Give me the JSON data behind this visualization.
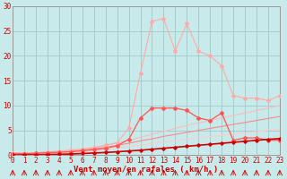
{
  "xlabel": "Vent moyen/en rafales ( km/h )",
  "xlim": [
    0,
    23
  ],
  "ylim": [
    0,
    30
  ],
  "xticks": [
    0,
    1,
    2,
    3,
    4,
    5,
    6,
    7,
    8,
    9,
    10,
    11,
    12,
    13,
    14,
    15,
    16,
    17,
    18,
    19,
    20,
    21,
    22,
    23
  ],
  "yticks": [
    0,
    5,
    10,
    15,
    20,
    25,
    30
  ],
  "bg_color": "#c8eaea",
  "grid_color": "#a0c8c8",
  "series": [
    {
      "x": [
        0,
        1,
        2,
        3,
        4,
        5,
        6,
        7,
        8,
        9,
        10,
        11,
        12,
        13,
        14,
        15,
        16,
        17,
        18,
        19,
        20,
        21,
        22,
        23
      ],
      "y": [
        0.5,
        0.5,
        0.5,
        0.7,
        0.8,
        1.0,
        1.2,
        1.5,
        2.0,
        2.5,
        5.5,
        16.5,
        27.0,
        27.5,
        21.0,
        26.5,
        21.0,
        20.0,
        18.0,
        12.0,
        11.5,
        11.5,
        11.0,
        12.0
      ],
      "color": "#ffaaaa",
      "lw": 0.8,
      "marker": "D",
      "ms": 2.0
    },
    {
      "x": [
        0,
        1,
        2,
        3,
        4,
        5,
        6,
        7,
        8,
        9,
        10,
        11,
        12,
        13,
        14,
        15,
        16,
        17,
        18,
        19,
        20,
        21,
        22,
        23
      ],
      "y": [
        0.3,
        0.3,
        0.4,
        0.5,
        0.6,
        0.7,
        0.9,
        1.1,
        1.4,
        1.9,
        3.2,
        7.5,
        9.5,
        9.5,
        9.5,
        9.0,
        7.5,
        7.0,
        8.5,
        3.0,
        3.5,
        3.5,
        3.0,
        3.0
      ],
      "color": "#ff5555",
      "lw": 0.9,
      "marker": "D",
      "ms": 2.0
    },
    {
      "x": [
        0,
        1,
        2,
        3,
        4,
        5,
        6,
        7,
        8,
        9,
        10,
        11,
        12,
        13,
        14,
        15,
        16,
        17,
        18,
        19,
        20,
        21,
        22,
        23
      ],
      "y": [
        0.2,
        0.3,
        0.4,
        0.6,
        0.8,
        1.0,
        1.3,
        1.6,
        2.0,
        2.5,
        3.0,
        3.6,
        4.2,
        4.8,
        5.4,
        6.0,
        6.5,
        7.0,
        7.5,
        8.0,
        8.5,
        9.0,
        9.5,
        10.0
      ],
      "color": "#ffbbbb",
      "lw": 0.8,
      "marker": null,
      "ms": 0
    },
    {
      "x": [
        0,
        1,
        2,
        3,
        4,
        5,
        6,
        7,
        8,
        9,
        10,
        11,
        12,
        13,
        14,
        15,
        16,
        17,
        18,
        19,
        20,
        21,
        22,
        23
      ],
      "y": [
        0.15,
        0.25,
        0.35,
        0.5,
        0.65,
        0.85,
        1.05,
        1.3,
        1.6,
        2.0,
        2.4,
        2.9,
        3.3,
        3.8,
        4.2,
        4.6,
        5.0,
        5.4,
        5.8,
        6.2,
        6.6,
        7.0,
        7.4,
        7.8
      ],
      "color": "#ff8888",
      "lw": 0.8,
      "marker": null,
      "ms": 0
    },
    {
      "x": [
        0,
        1,
        2,
        3,
        4,
        5,
        6,
        7,
        8,
        9,
        10,
        11,
        12,
        13,
        14,
        15,
        16,
        17,
        18,
        19,
        20,
        21,
        22,
        23
      ],
      "y": [
        0.1,
        0.15,
        0.25,
        0.35,
        0.5,
        0.6,
        0.75,
        0.95,
        1.2,
        1.5,
        1.75,
        2.05,
        2.35,
        2.65,
        2.9,
        3.2,
        3.5,
        3.75,
        4.0,
        4.25,
        4.5,
        4.75,
        5.0,
        5.2
      ],
      "color": "#ffcccc",
      "lw": 0.8,
      "marker": null,
      "ms": 0
    },
    {
      "x": [
        0,
        1,
        2,
        3,
        4,
        5,
        6,
        7,
        8,
        9,
        10,
        11,
        12,
        13,
        14,
        15,
        16,
        17,
        18,
        19,
        20,
        21,
        22,
        23
      ],
      "y": [
        0.05,
        0.1,
        0.1,
        0.15,
        0.2,
        0.25,
        0.35,
        0.45,
        0.55,
        0.7,
        0.85,
        1.0,
        1.2,
        1.4,
        1.6,
        1.8,
        2.0,
        2.2,
        2.4,
        2.6,
        2.8,
        3.0,
        3.2,
        3.35
      ],
      "color": "#cc0000",
      "lw": 1.2,
      "marker": "D",
      "ms": 1.8
    }
  ],
  "tick_fontsize": 5.5,
  "xlabel_fontsize": 6.5,
  "tick_color": "#cc0000",
  "xlabel_color": "#cc0000",
  "arrow_color": "#cc0000"
}
